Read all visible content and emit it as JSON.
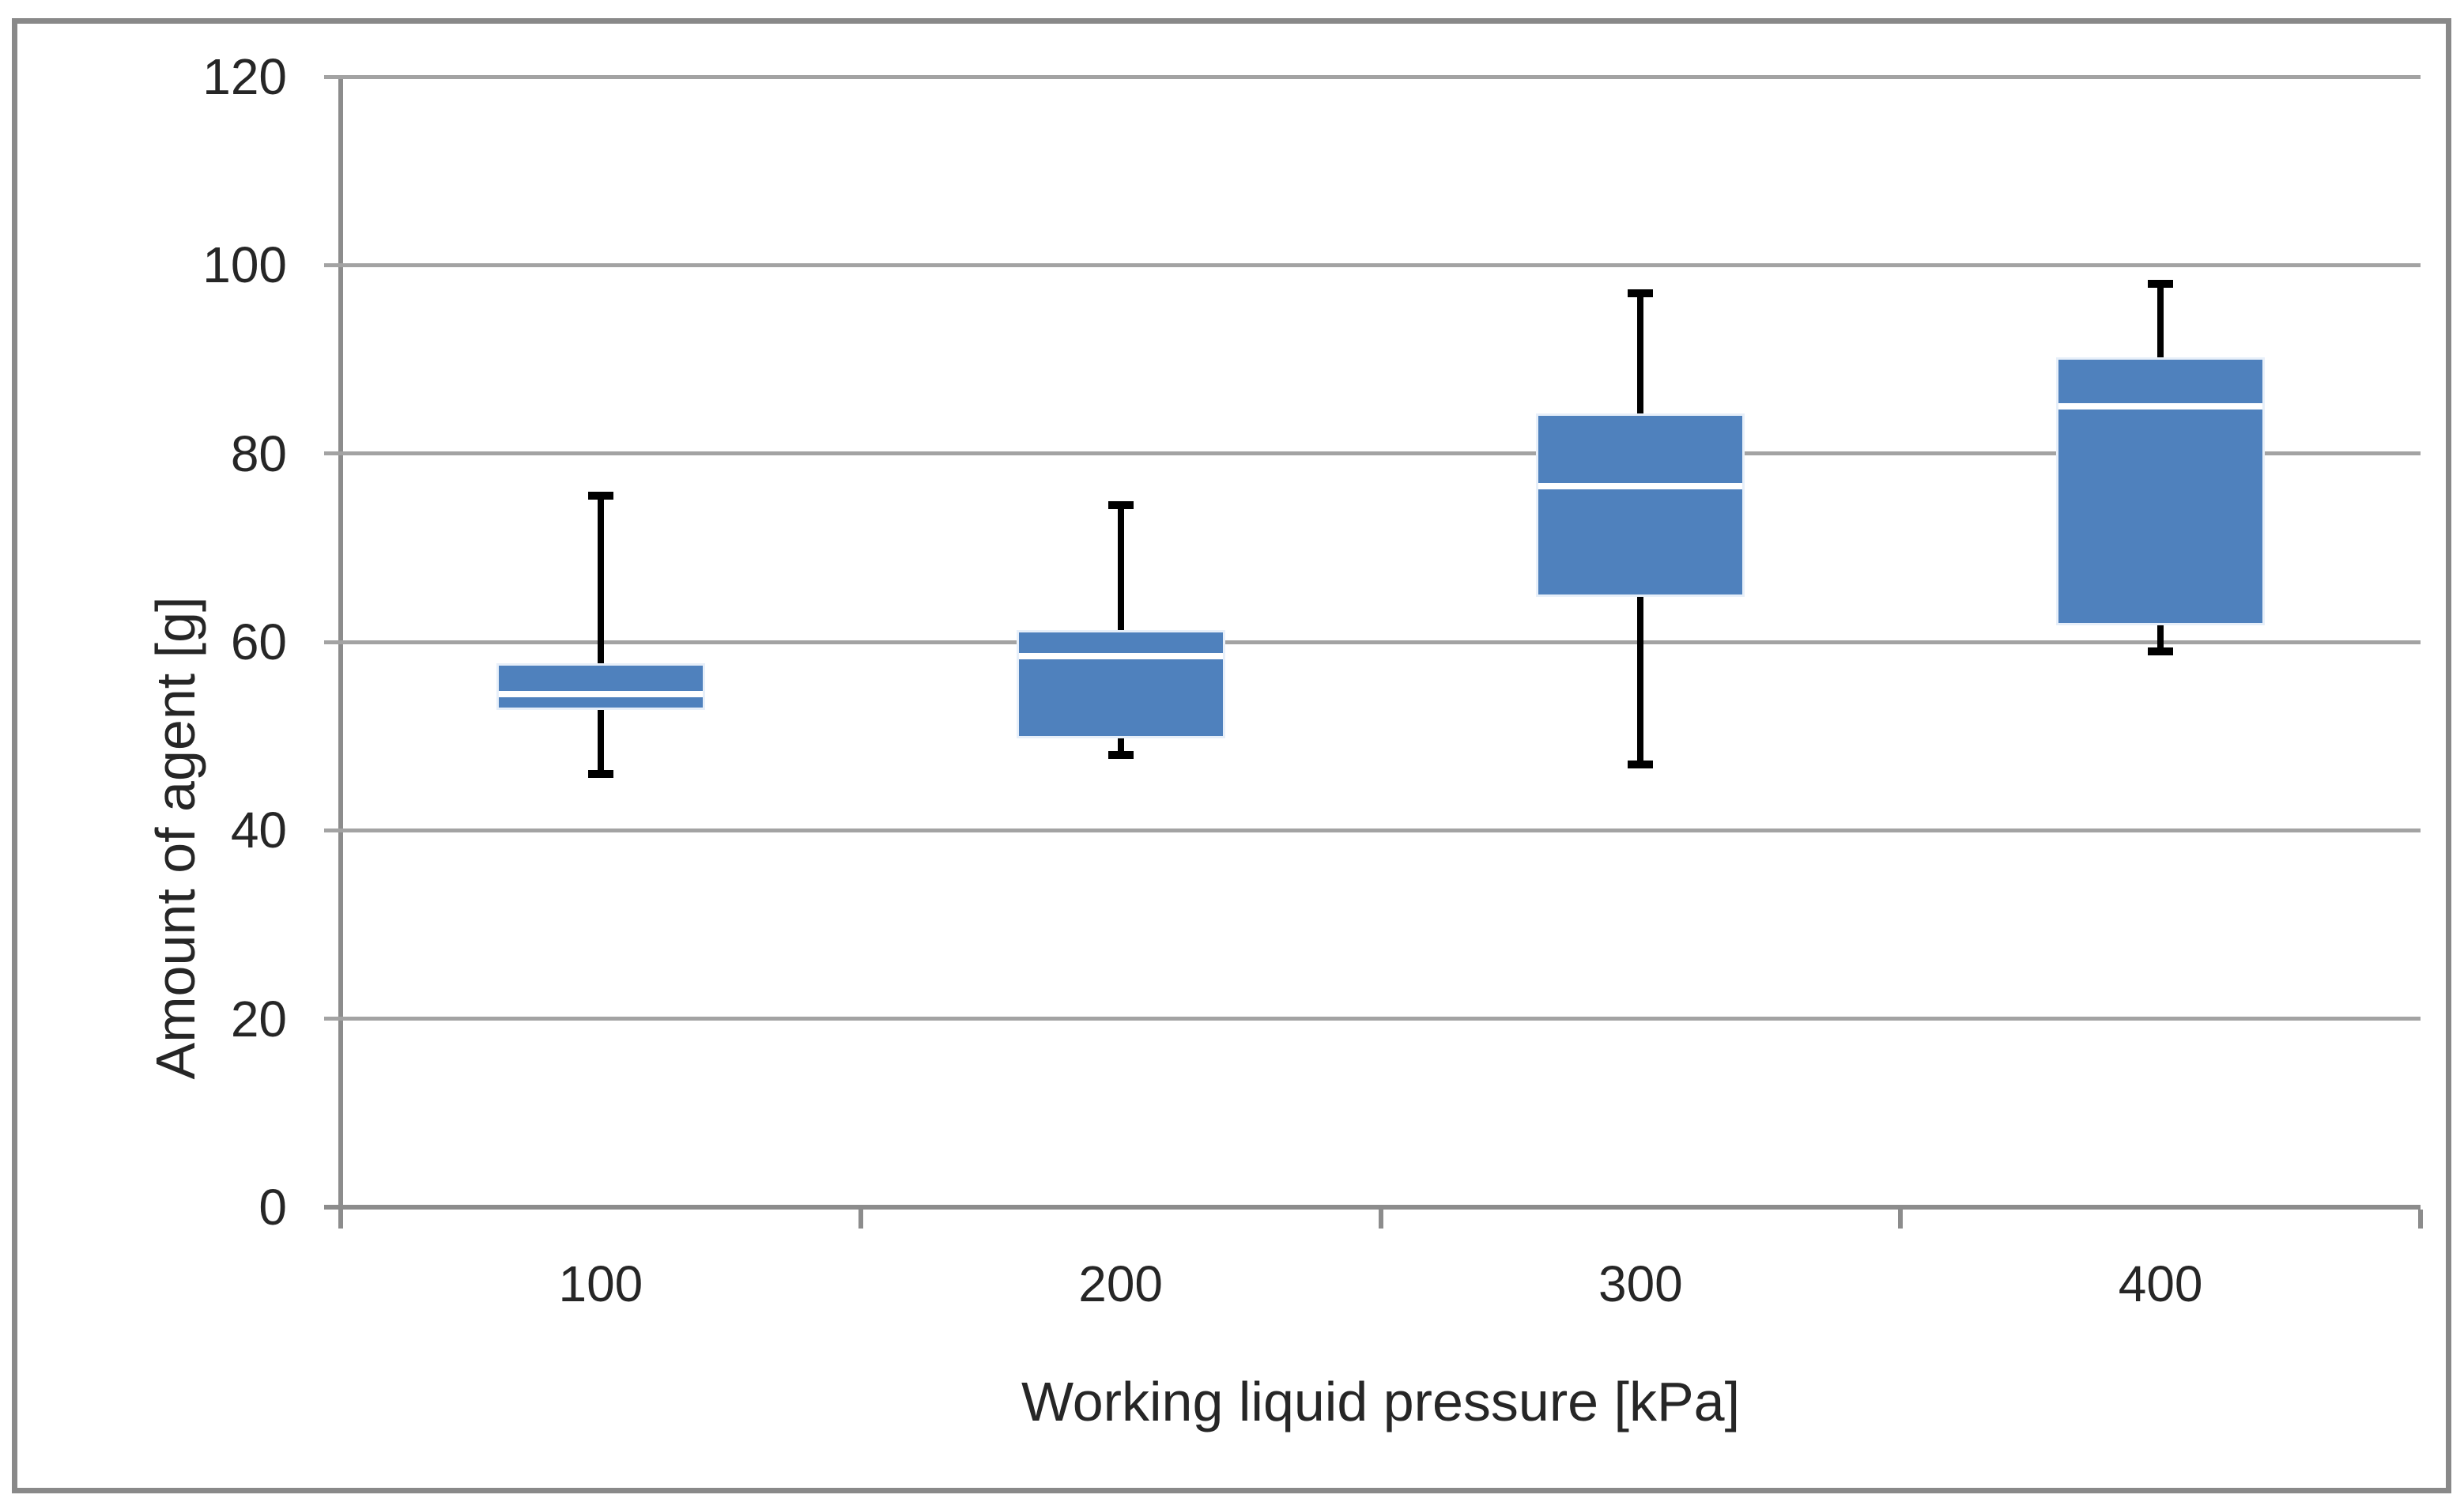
{
  "figure": {
    "kind": "box-and-whisker chart",
    "title": ""
  },
  "colors": {
    "box_fill": "#4f81bd",
    "box_halo": "#e7eff9",
    "median_stripe": "#ffffff",
    "whisker": "#000000",
    "gridline": "#a3a3a3",
    "axis": "#8c8c8c",
    "frame_border": "#898989",
    "text": "#262626",
    "background": "#ffffff"
  },
  "chart_data": {
    "type": "boxplot",
    "title": "",
    "xlabel": "Working liquid pressure [kPa]",
    "ylabel": "Amount of agent [g]",
    "categories": [
      "100",
      "200",
      "300",
      "400"
    ],
    "y_ticks": [
      0,
      20,
      40,
      60,
      80,
      100,
      120
    ],
    "ylim": [
      0,
      120
    ],
    "grid": "horizontal gridlines every 20",
    "legend": "none",
    "series": [
      {
        "category": "100",
        "min": 46,
        "q1": 53,
        "median": 54.5,
        "q3": 57.5,
        "max": 75.5
      },
      {
        "category": "200",
        "min": 48,
        "q1": 50,
        "median": 58.5,
        "q3": 61,
        "max": 74.5
      },
      {
        "category": "300",
        "min": 47,
        "q1": 65,
        "median": 76.5,
        "q3": 84,
        "max": 97
      },
      {
        "category": "400",
        "min": 59,
        "q1": 62,
        "median": 85,
        "q3": 90,
        "max": 98
      }
    ]
  }
}
